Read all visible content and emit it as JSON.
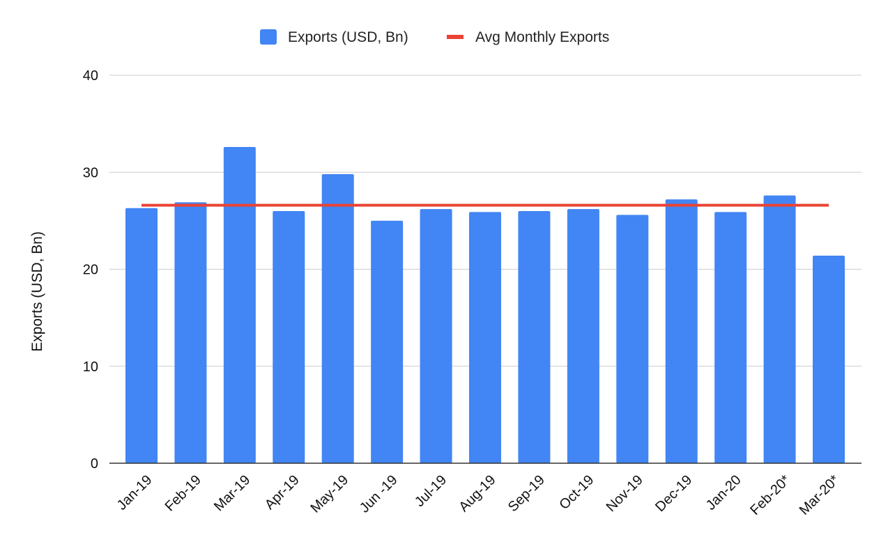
{
  "chart_data": {
    "type": "bar",
    "categories": [
      "Jan-19",
      "Feb-19",
      "Mar-19",
      "Apr-19",
      "May-19",
      "Jun -19",
      "Jul-19",
      "Aug-19",
      "Sep-19",
      "Oct-19",
      "Nov-19",
      "Dec-19",
      "Jan-20",
      "Feb-20*",
      "Mar-20*"
    ],
    "series": [
      {
        "name": "Exports (USD, Bn)",
        "type": "bar",
        "color": "#4285f4",
        "values": [
          26.3,
          26.9,
          32.6,
          26.0,
          29.8,
          25.0,
          26.2,
          25.9,
          26.0,
          26.2,
          25.6,
          27.2,
          25.9,
          27.6,
          21.4
        ]
      },
      {
        "name": "Avg Monthly Exports",
        "type": "line",
        "color": "#ea4335",
        "values": [
          26.6,
          26.6,
          26.6,
          26.6,
          26.6,
          26.6,
          26.6,
          26.6,
          26.6,
          26.6,
          26.6,
          26.6,
          26.6,
          26.6,
          26.6
        ]
      }
    ],
    "title": "",
    "xlabel": "",
    "ylabel": "Exports (USD, Bn)",
    "ylim": [
      0,
      40
    ],
    "yticks": [
      "0",
      "10",
      "20",
      "30",
      "40"
    ],
    "grid": true,
    "legend_position": "top-center"
  }
}
